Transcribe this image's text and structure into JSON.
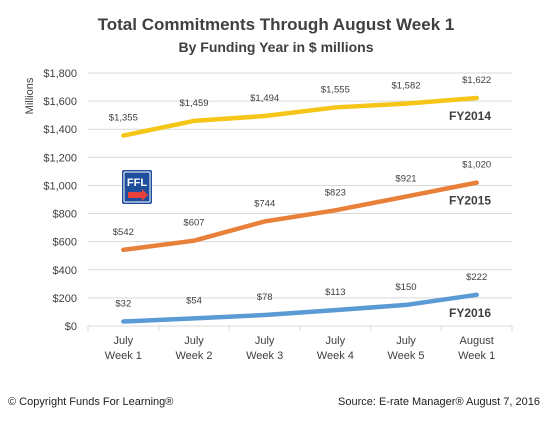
{
  "colors": {
    "FY2014": "#F5C518",
    "FY2015": "#E8803A",
    "FY2016": "#5B9BD5",
    "grid": "#D9D9D9",
    "text": "#404040"
  },
  "logo": {
    "icon": "ffl-logo-icon",
    "text": "FFL"
  },
  "chart_data": {
    "type": "line",
    "title": "Total Commitments Through August Week 1",
    "subtitle": "By Funding Year in $ millions",
    "ylabel": "Millions",
    "xlabel": "",
    "categories": [
      [
        "July",
        "Week 1"
      ],
      [
        "July",
        "Week 2"
      ],
      [
        "July",
        "Week 3"
      ],
      [
        "July",
        "Week 4"
      ],
      [
        "July",
        "Week 5"
      ],
      [
        "August",
        "Week 1"
      ]
    ],
    "ylim": [
      0,
      1800
    ],
    "yticks": [
      "$0",
      "$200",
      "$400",
      "$600",
      "$800",
      "$1,000",
      "$1,200",
      "$1,400",
      "$1,600",
      "$1,800"
    ],
    "grid": true,
    "legend": "series labels at right end of lines",
    "series": [
      {
        "name": "FY2014",
        "values": [
          1355,
          1459,
          1494,
          1555,
          1582,
          1622
        ],
        "labels": [
          "$1,355",
          "$1,459",
          "$1,494",
          "$1,555",
          "$1,582",
          "$1,622"
        ]
      },
      {
        "name": "FY2015",
        "values": [
          542,
          607,
          744,
          823,
          921,
          1020
        ],
        "labels": [
          "$542",
          "$607",
          "$744",
          "$823",
          "$921",
          "$1,020"
        ]
      },
      {
        "name": "FY2016",
        "values": [
          32,
          54,
          78,
          113,
          150,
          222
        ],
        "labels": [
          "$32",
          "$54",
          "$78",
          "$113",
          "$150",
          "$222"
        ]
      }
    ]
  },
  "footer": {
    "copyright": "© Copyright Funds For Learning®",
    "source": "Source: E-rate Manager®  August 7, 2016"
  }
}
